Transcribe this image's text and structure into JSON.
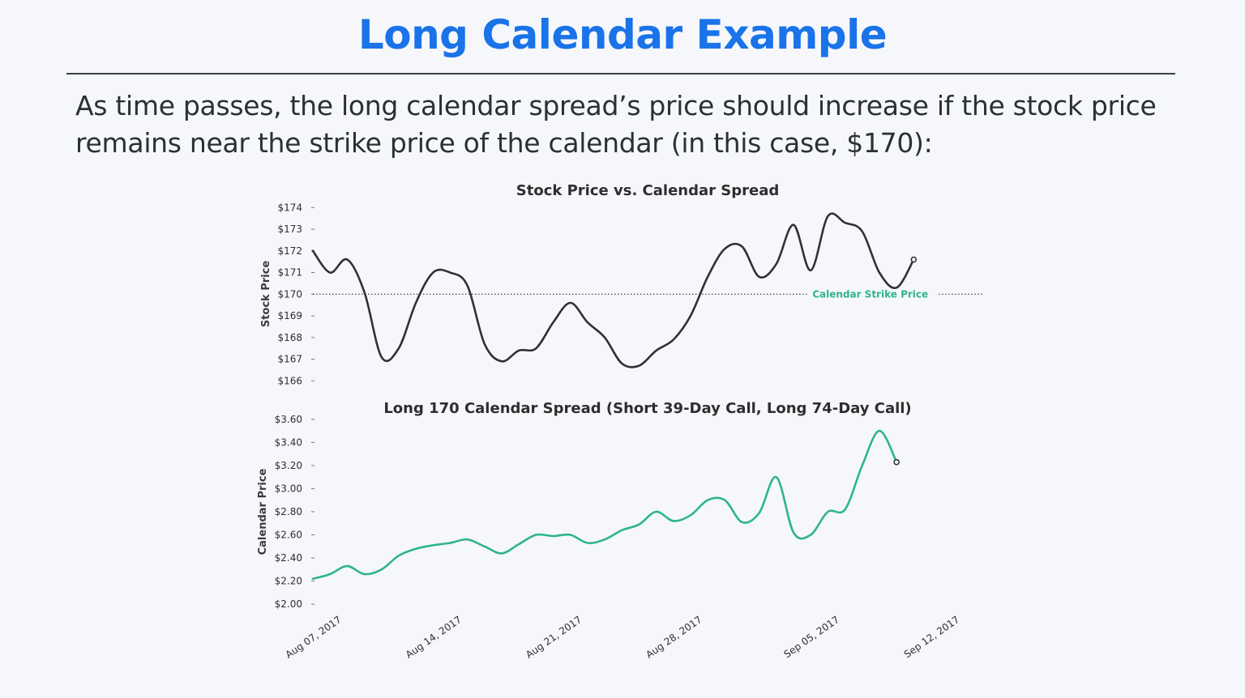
{
  "slide": {
    "title": "Long Calendar Example",
    "body": "As time passes, the long calendar spread’s price should increase if the stock price remains near the strike price of the calendar (in this case, $170):"
  },
  "colors": {
    "title": "#1a73e8",
    "stock_line": "#2f3136",
    "spread_line": "#2fb48c",
    "strike_annotation": "#2fb48c"
  },
  "chart_data": [
    {
      "type": "line",
      "title": "Stock Price vs. Calendar Spread",
      "xlabel": "",
      "ylabel": "Stock Price",
      "ylim": [
        165.6,
        174.2
      ],
      "yticks": [
        166,
        167,
        168,
        169,
        170,
        171,
        172,
        173,
        174
      ],
      "ytick_labels": [
        "$166",
        "$167",
        "$168",
        "$169",
        "$170",
        "$171",
        "$172",
        "$173",
        "$174"
      ],
      "x_start": "2017-08-07",
      "x_end": "2017-09-15",
      "series": [
        {
          "color": "#2f3136",
          "points": [
            [
              "2017-08-07",
              172.0
            ],
            [
              "2017-08-08",
              171.0
            ],
            [
              "2017-08-09",
              171.6
            ],
            [
              "2017-08-10",
              170.1
            ],
            [
              "2017-08-11",
              167.1
            ],
            [
              "2017-08-12",
              167.5
            ],
            [
              "2017-08-13",
              169.6
            ],
            [
              "2017-08-14",
              171.0
            ],
            [
              "2017-08-15",
              171.0
            ],
            [
              "2017-08-16",
              170.4
            ],
            [
              "2017-08-17",
              167.7
            ],
            [
              "2017-08-18",
              166.9
            ],
            [
              "2017-08-19",
              167.4
            ],
            [
              "2017-08-20",
              167.5
            ],
            [
              "2017-08-21",
              168.7
            ],
            [
              "2017-08-22",
              169.6
            ],
            [
              "2017-08-23",
              168.7
            ],
            [
              "2017-08-24",
              168.0
            ],
            [
              "2017-08-25",
              166.8
            ],
            [
              "2017-08-26",
              166.7
            ],
            [
              "2017-08-27",
              167.4
            ],
            [
              "2017-08-28",
              167.9
            ],
            [
              "2017-08-29",
              169.0
            ],
            [
              "2017-08-30",
              170.8
            ],
            [
              "2017-08-31",
              172.1
            ],
            [
              "2017-09-01",
              172.2
            ],
            [
              "2017-09-02",
              170.8
            ],
            [
              "2017-09-03",
              171.4
            ],
            [
              "2017-09-04",
              173.2
            ],
            [
              "2017-09-05",
              171.1
            ],
            [
              "2017-09-06",
              173.6
            ],
            [
              "2017-09-07",
              173.3
            ],
            [
              "2017-09-08",
              172.9
            ],
            [
              "2017-09-09",
              171.0
            ],
            [
              "2017-09-10",
              170.3
            ],
            [
              "2017-09-11",
              171.6
            ]
          ]
        }
      ],
      "annotations": [
        {
          "type": "hline",
          "y": 170,
          "label": "Calendar Strike Price",
          "label_x": "2017-09-05",
          "style": "dotted"
        }
      ]
    },
    {
      "type": "line",
      "title": "Long 170 Calendar Spread (Short 39-Day Call, Long 74-Day Call)",
      "xlabel": "",
      "ylabel": "Calendar Price",
      "ylim": [
        1.98,
        3.62
      ],
      "yticks": [
        2.0,
        2.2,
        2.4,
        2.6,
        2.8,
        3.0,
        3.2,
        3.4,
        3.6
      ],
      "ytick_labels": [
        "$2.00",
        "$2.20",
        "$2.40",
        "$2.60",
        "$2.80",
        "$3.00",
        "$3.20",
        "$3.40",
        "$3.60"
      ],
      "x_start": "2017-08-07",
      "x_end": "2017-09-15",
      "xticks": [
        "2017-08-07",
        "2017-08-14",
        "2017-08-21",
        "2017-08-28",
        "2017-09-05",
        "2017-09-12"
      ],
      "xtick_labels": [
        "Aug 07, 2017",
        "Aug 14, 2017",
        "Aug 21, 2017",
        "Aug 28, 2017",
        "Sep 05, 2017",
        "Sep 12, 2017"
      ],
      "series": [
        {
          "color": "#2fb48c",
          "points": [
            [
              "2017-08-07",
              2.22
            ],
            [
              "2017-08-08",
              2.26
            ],
            [
              "2017-08-09",
              2.33
            ],
            [
              "2017-08-10",
              2.26
            ],
            [
              "2017-08-11",
              2.3
            ],
            [
              "2017-08-12",
              2.42
            ],
            [
              "2017-08-13",
              2.48
            ],
            [
              "2017-08-14",
              2.51
            ],
            [
              "2017-08-15",
              2.53
            ],
            [
              "2017-08-16",
              2.56
            ],
            [
              "2017-08-17",
              2.5
            ],
            [
              "2017-08-18",
              2.44
            ],
            [
              "2017-08-19",
              2.52
            ],
            [
              "2017-08-20",
              2.6
            ],
            [
              "2017-08-21",
              2.59
            ],
            [
              "2017-08-22",
              2.6
            ],
            [
              "2017-08-23",
              2.53
            ],
            [
              "2017-08-24",
              2.56
            ],
            [
              "2017-08-25",
              2.64
            ],
            [
              "2017-08-26",
              2.69
            ],
            [
              "2017-08-27",
              2.8
            ],
            [
              "2017-08-28",
              2.72
            ],
            [
              "2017-08-29",
              2.77
            ],
            [
              "2017-08-30",
              2.9
            ],
            [
              "2017-08-31",
              2.9
            ],
            [
              "2017-09-01",
              2.71
            ],
            [
              "2017-09-02",
              2.79
            ],
            [
              "2017-09-03",
              3.1
            ],
            [
              "2017-09-04",
              2.62
            ],
            [
              "2017-09-05",
              2.6
            ],
            [
              "2017-09-06",
              2.8
            ],
            [
              "2017-09-07",
              2.82
            ],
            [
              "2017-09-08",
              3.2
            ],
            [
              "2017-09-09",
              3.5
            ],
            [
              "2017-09-10",
              3.23
            ]
          ]
        }
      ]
    }
  ]
}
